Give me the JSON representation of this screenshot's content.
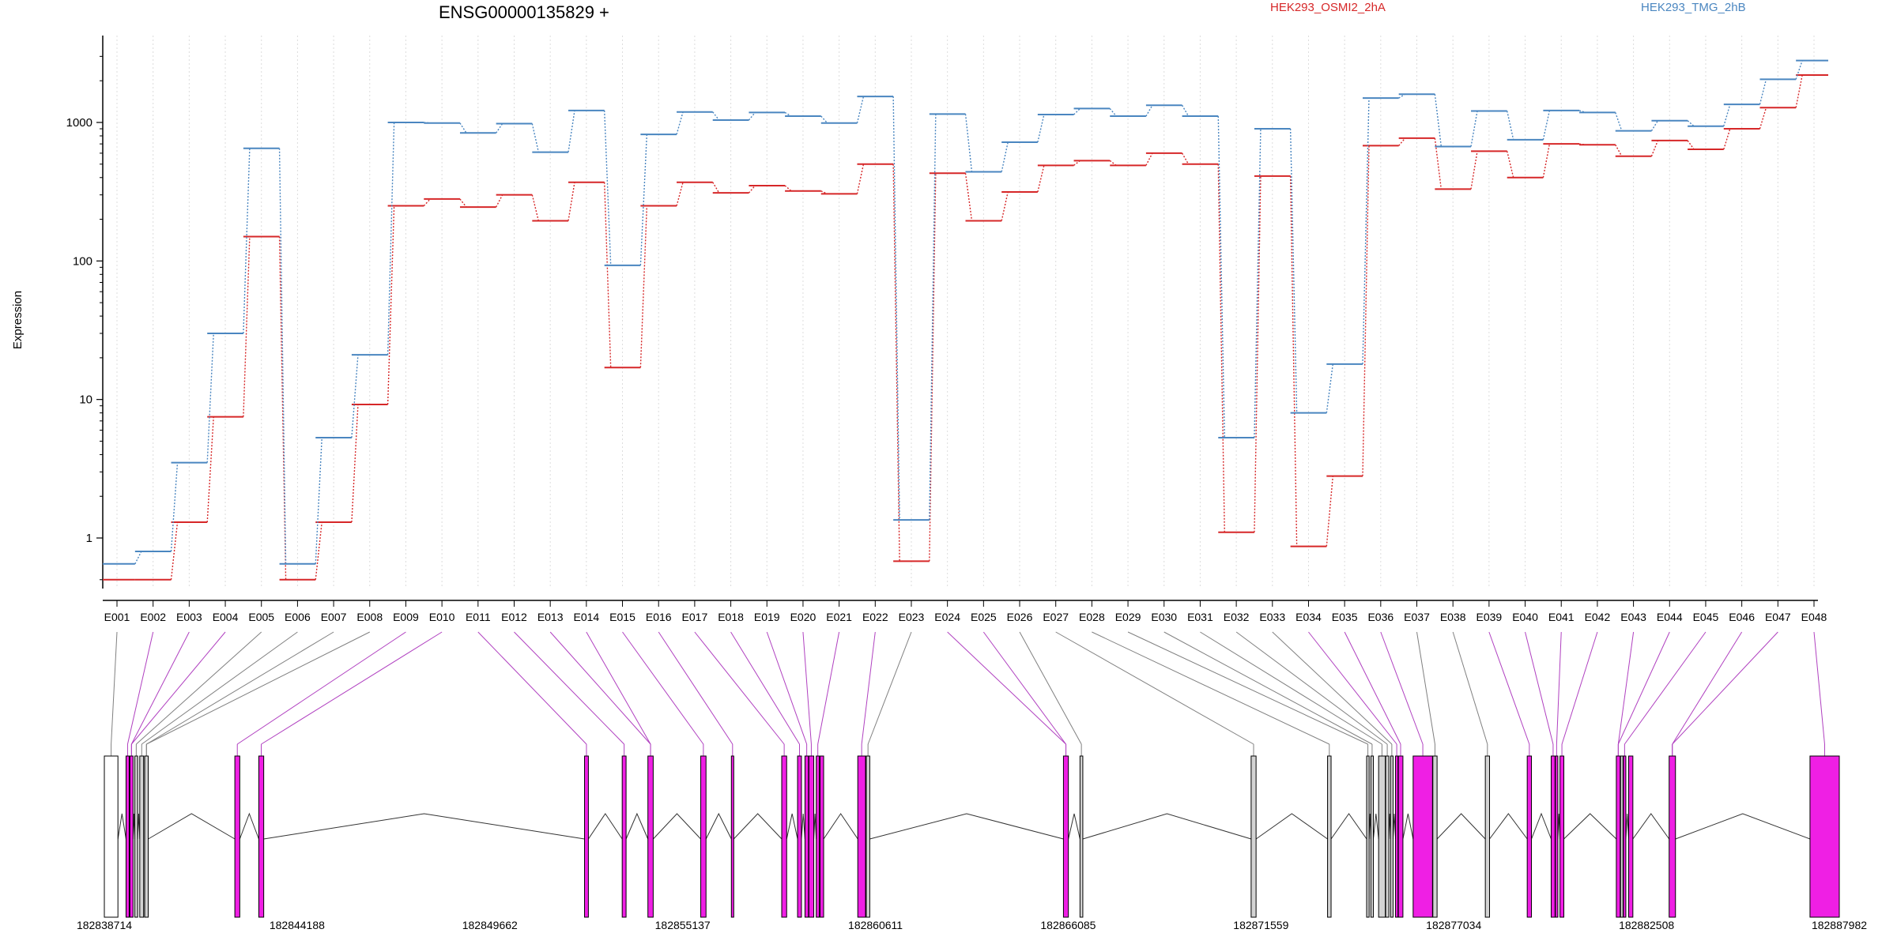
{
  "chart_data": {
    "type": "line",
    "title": "ENSG00000135829 +",
    "xlabel": "",
    "ylabel": "Expression",
    "y_scale": "log",
    "ylim": [
      0.45,
      3800
    ],
    "yticks": [
      1,
      10,
      100,
      1000
    ],
    "ytick_labels": [
      "1",
      "10",
      "100",
      "1000"
    ],
    "grid": "vertical-dotted",
    "legend_placement": "top",
    "categories": [
      "E001",
      "E002",
      "E003",
      "E004",
      "E005",
      "E006",
      "E007",
      "E008",
      "E009",
      "E010",
      "E011",
      "E012",
      "E013",
      "E014",
      "E015",
      "E016",
      "E017",
      "E018",
      "E019",
      "E020",
      "E021",
      "E022",
      "E023",
      "E024",
      "E025",
      "E026",
      "E027",
      "E028",
      "E029",
      "E030",
      "E031",
      "E032",
      "E033",
      "E034",
      "E035",
      "E036",
      "E037",
      "E038",
      "E039",
      "E040",
      "E041",
      "E042",
      "E043",
      "E044",
      "E045",
      "E046",
      "E047",
      "E048"
    ],
    "series": [
      {
        "name": "HEK293_OSMI2_2hA",
        "color": "#d62728",
        "values": [
          0.5,
          0.5,
          1.3,
          7.5,
          150,
          0.5,
          1.3,
          9.2,
          250,
          280,
          245,
          300,
          195,
          370,
          17,
          250,
          370,
          310,
          350,
          320,
          305,
          500,
          0.68,
          430,
          195,
          315,
          490,
          530,
          490,
          600,
          500,
          1.1,
          410,
          0.87,
          2.8,
          680,
          770,
          330,
          620,
          400,
          700,
          690,
          570,
          740,
          640,
          900,
          1280,
          2200
        ]
      },
      {
        "name": "HEK293_TMG_2hB",
        "color": "#4a86c0",
        "values": [
          0.65,
          0.8,
          3.5,
          30,
          650,
          0.65,
          5.3,
          21,
          1000,
          990,
          840,
          980,
          610,
          1220,
          93,
          820,
          1190,
          1040,
          1180,
          1110,
          990,
          1540,
          1.35,
          1150,
          440,
          720,
          1140,
          1260,
          1110,
          1330,
          1110,
          5.3,
          900,
          8,
          18,
          1500,
          1600,
          670,
          1210,
          750,
          1220,
          1180,
          870,
          1030,
          940,
          1350,
          2050,
          2800
        ]
      }
    ]
  },
  "gene_model": {
    "start_label": "182838714",
    "end_label": "182887982",
    "axis_labels": [
      "182838714",
      "182844188",
      "182849662",
      "182855137",
      "182860611",
      "182866085",
      "182871559",
      "182877034",
      "182882508",
      "182887982"
    ],
    "colors": {
      "expressed": "#ef1fe4",
      "not_expressed": "#d3d3d3",
      "connector_expressed": "#b040c0",
      "connector_other": "#808080"
    },
    "exons": [
      {
        "start": 182838714,
        "end": 182839100,
        "kind": "box"
      },
      {
        "start": 182839330,
        "end": 182839420,
        "kind": "magenta"
      },
      {
        "start": 182839440,
        "end": 182839530,
        "kind": "magenta"
      },
      {
        "start": 182839580,
        "end": 182839660,
        "kind": "grey"
      },
      {
        "start": 182839720,
        "end": 182839830,
        "kind": "grey"
      },
      {
        "start": 182839860,
        "end": 182839960,
        "kind": "grey"
      },
      {
        "start": 182842420,
        "end": 182842560,
        "kind": "magenta"
      },
      {
        "start": 182843100,
        "end": 182843240,
        "kind": "magenta"
      },
      {
        "start": 182852350,
        "end": 182852460,
        "kind": "magenta"
      },
      {
        "start": 182853420,
        "end": 182853530,
        "kind": "magenta"
      },
      {
        "start": 182854150,
        "end": 182854300,
        "kind": "magenta"
      },
      {
        "start": 182855650,
        "end": 182855800,
        "kind": "magenta"
      },
      {
        "start": 182856520,
        "end": 182856580,
        "kind": "magenta"
      },
      {
        "start": 182857950,
        "end": 182858090,
        "kind": "magenta"
      },
      {
        "start": 182858400,
        "end": 182858510,
        "kind": "magenta"
      },
      {
        "start": 182858610,
        "end": 182858710,
        "kind": "magenta"
      },
      {
        "start": 182858720,
        "end": 182858860,
        "kind": "magenta"
      },
      {
        "start": 182858930,
        "end": 182859020,
        "kind": "magenta"
      },
      {
        "start": 182859040,
        "end": 182859140,
        "kind": "magenta"
      },
      {
        "start": 182860110,
        "end": 182860330,
        "kind": "magenta"
      },
      {
        "start": 182860350,
        "end": 182860450,
        "kind": "grey"
      },
      {
        "start": 182865950,
        "end": 182866090,
        "kind": "magenta"
      },
      {
        "start": 182866420,
        "end": 182866500,
        "kind": "grey"
      },
      {
        "start": 182871280,
        "end": 182871420,
        "kind": "grey"
      },
      {
        "start": 182873450,
        "end": 182873550,
        "kind": "grey"
      },
      {
        "start": 182874560,
        "end": 182874630,
        "kind": "grey"
      },
      {
        "start": 182874680,
        "end": 182874750,
        "kind": "grey"
      },
      {
        "start": 182874900,
        "end": 182875090,
        "kind": "grey"
      },
      {
        "start": 182875100,
        "end": 182875190,
        "kind": "grey"
      },
      {
        "start": 182875240,
        "end": 182875310,
        "kind": "grey"
      },
      {
        "start": 182875380,
        "end": 182875450,
        "kind": "magenta"
      },
      {
        "start": 182875460,
        "end": 182875590,
        "kind": "magenta"
      },
      {
        "start": 182875880,
        "end": 182876430,
        "kind": "magenta"
      },
      {
        "start": 182876440,
        "end": 182876560,
        "kind": "grey"
      },
      {
        "start": 182877930,
        "end": 182878050,
        "kind": "grey"
      },
      {
        "start": 182879120,
        "end": 182879240,
        "kind": "magenta"
      },
      {
        "start": 182879800,
        "end": 182879910,
        "kind": "magenta"
      },
      {
        "start": 182879920,
        "end": 182879990,
        "kind": "magenta"
      },
      {
        "start": 182880050,
        "end": 182880160,
        "kind": "magenta"
      },
      {
        "start": 182881650,
        "end": 182881760,
        "kind": "magenta"
      },
      {
        "start": 182881770,
        "end": 182881840,
        "kind": "grey"
      },
      {
        "start": 182881850,
        "end": 182881920,
        "kind": "magenta"
      },
      {
        "start": 182882000,
        "end": 182882120,
        "kind": "magenta"
      },
      {
        "start": 182883150,
        "end": 182883330,
        "kind": "magenta"
      },
      {
        "start": 182887150,
        "end": 182887982,
        "kind": "magenta"
      }
    ],
    "mapping": [
      {
        "exon": "E001",
        "bin": 0,
        "color": "grey"
      },
      {
        "exon": "E002",
        "bin": 1,
        "color": "magenta"
      },
      {
        "exon": "E003",
        "bin": 2,
        "color": "magenta"
      },
      {
        "exon": "E004",
        "bin": 2,
        "color": "magenta"
      },
      {
        "exon": "E005",
        "bin": 3,
        "color": "grey"
      },
      {
        "exon": "E006",
        "bin": 4,
        "color": "grey"
      },
      {
        "exon": "E007",
        "bin": 5,
        "color": "grey"
      },
      {
        "exon": "E008",
        "bin": 5,
        "color": "grey"
      },
      {
        "exon": "E009",
        "bin": 6,
        "color": "magenta"
      },
      {
        "exon": "E010",
        "bin": 7,
        "color": "magenta"
      },
      {
        "exon": "E011",
        "bin": 8,
        "color": "magenta"
      },
      {
        "exon": "E012",
        "bin": 9,
        "color": "magenta"
      },
      {
        "exon": "E013",
        "bin": 10,
        "color": "magenta"
      },
      {
        "exon": "E014",
        "bin": 10,
        "color": "magenta"
      },
      {
        "exon": "E015",
        "bin": 11,
        "color": "magenta"
      },
      {
        "exon": "E016",
        "bin": 12,
        "color": "magenta"
      },
      {
        "exon": "E017",
        "bin": 13,
        "color": "magenta"
      },
      {
        "exon": "E018",
        "bin": 14,
        "color": "magenta"
      },
      {
        "exon": "E019",
        "bin": 15,
        "color": "magenta"
      },
      {
        "exon": "E020",
        "bin": 16,
        "color": "magenta"
      },
      {
        "exon": "E021",
        "bin": 17,
        "color": "magenta"
      },
      {
        "exon": "E022",
        "bin": 19,
        "color": "magenta"
      },
      {
        "exon": "E023",
        "bin": 20,
        "color": "grey"
      },
      {
        "exon": "E024",
        "bin": 21,
        "color": "magenta"
      },
      {
        "exon": "E025",
        "bin": 21,
        "color": "magenta"
      },
      {
        "exon": "E026",
        "bin": 22,
        "color": "grey"
      },
      {
        "exon": "E027",
        "bin": 23,
        "color": "grey"
      },
      {
        "exon": "E028",
        "bin": 24,
        "color": "grey"
      },
      {
        "exon": "E029",
        "bin": 25,
        "color": "grey"
      },
      {
        "exon": "E030",
        "bin": 26,
        "color": "grey"
      },
      {
        "exon": "E031",
        "bin": 27,
        "color": "grey"
      },
      {
        "exon": "E032",
        "bin": 28,
        "color": "grey"
      },
      {
        "exon": "E033",
        "bin": 29,
        "color": "grey"
      },
      {
        "exon": "E034",
        "bin": 30,
        "color": "magenta"
      },
      {
        "exon": "E035",
        "bin": 31,
        "color": "magenta"
      },
      {
        "exon": "E036",
        "bin": 32,
        "color": "magenta"
      },
      {
        "exon": "E037",
        "bin": 33,
        "color": "grey"
      },
      {
        "exon": "E038",
        "bin": 34,
        "color": "grey"
      },
      {
        "exon": "E039",
        "bin": 35,
        "color": "magenta"
      },
      {
        "exon": "E040",
        "bin": 36,
        "color": "magenta"
      },
      {
        "exon": "E041",
        "bin": 37,
        "color": "magenta"
      },
      {
        "exon": "E042",
        "bin": 38,
        "color": "magenta"
      },
      {
        "exon": "E043",
        "bin": 39,
        "color": "magenta"
      },
      {
        "exon": "E044",
        "bin": 39,
        "color": "magenta"
      },
      {
        "exon": "E045",
        "bin": 41,
        "color": "magenta"
      },
      {
        "exon": "E046",
        "bin": 43,
        "color": "magenta"
      },
      {
        "exon": "E047",
        "bin": 43,
        "color": "magenta"
      },
      {
        "exon": "E048",
        "bin": 44,
        "color": "magenta"
      }
    ]
  }
}
